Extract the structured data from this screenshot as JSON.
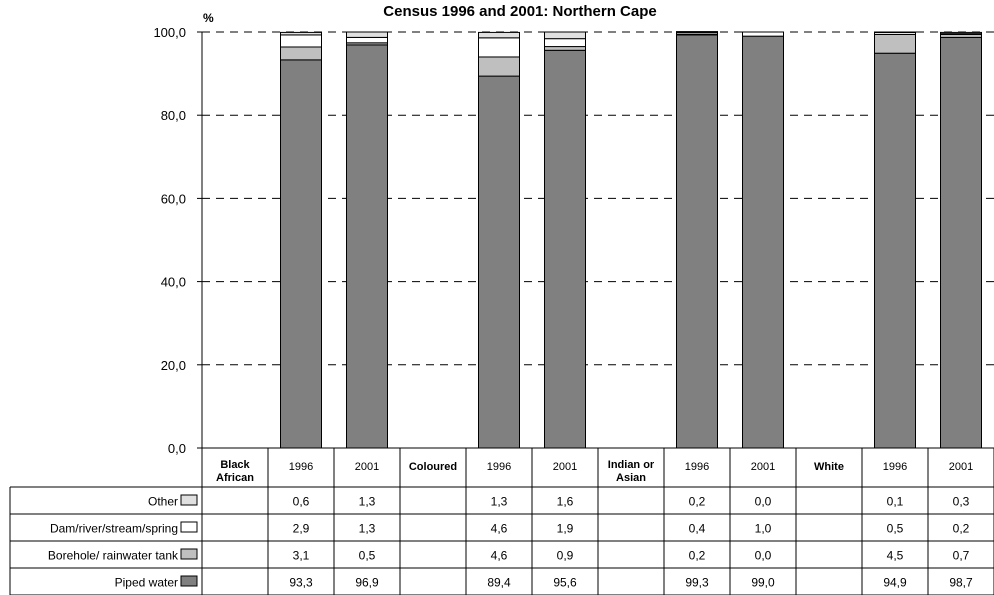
{
  "chart_data": {
    "type": "bar",
    "stacked": true,
    "title": "Census 1996 and 2001: Northern Cape",
    "ylabel": "%",
    "ylim": [
      0,
      100
    ],
    "yticks": [
      "0,0",
      "20,0",
      "40,0",
      "60,0",
      "80,0",
      "100,0"
    ],
    "grid": "dashed horizontal",
    "categories": [
      "Black African",
      "1996",
      "2001",
      "Coloured",
      "1996",
      "2001",
      "Indian or Asian",
      "1996",
      "2001",
      "White",
      "1996",
      "2001"
    ],
    "header_categories": [
      "Black African",
      "Coloured",
      "Indian or Asian",
      "White"
    ],
    "series": [
      {
        "name": "Piped water",
        "color": "#808080",
        "values": [
          null,
          93.3,
          96.9,
          null,
          89.4,
          95.6,
          null,
          99.3,
          99.0,
          null,
          94.9,
          98.7
        ],
        "labels": [
          "",
          "93,3",
          "96,9",
          "",
          "89,4",
          "95,6",
          "",
          "99,3",
          "99,0",
          "",
          "94,9",
          "98,7"
        ]
      },
      {
        "name": "Borehole/ rainwater tank",
        "color": "#bfbfbf",
        "values": [
          null,
          3.1,
          0.5,
          null,
          4.6,
          0.9,
          null,
          0.2,
          0.0,
          null,
          4.5,
          0.7
        ],
        "labels": [
          "",
          "3,1",
          "0,5",
          "",
          "4,6",
          "0,9",
          "",
          "0,2",
          "0,0",
          "",
          "4,5",
          "0,7"
        ]
      },
      {
        "name": "Dam/river/stream/spring",
        "color": "#ffffff",
        "values": [
          null,
          2.9,
          1.3,
          null,
          4.6,
          1.9,
          null,
          0.4,
          1.0,
          null,
          0.5,
          0.2
        ],
        "labels": [
          "",
          "2,9",
          "1,3",
          "",
          "4,6",
          "1,9",
          "",
          "0,4",
          "1,0",
          "",
          "0,5",
          "0,2"
        ]
      },
      {
        "name": "Other",
        "color": "#e0e0e0",
        "values": [
          null,
          0.6,
          1.3,
          null,
          1.3,
          1.6,
          null,
          0.2,
          0.0,
          null,
          0.1,
          0.3
        ],
        "labels": [
          "",
          "0,6",
          "1,3",
          "",
          "1,3",
          "1,6",
          "",
          "0,2",
          "0,0",
          "",
          "0,1",
          "0,3"
        ]
      }
    ],
    "table_row_order": [
      "Other",
      "Dam/river/stream/spring",
      "Borehole/ rainwater tank",
      "Piped water"
    ]
  }
}
